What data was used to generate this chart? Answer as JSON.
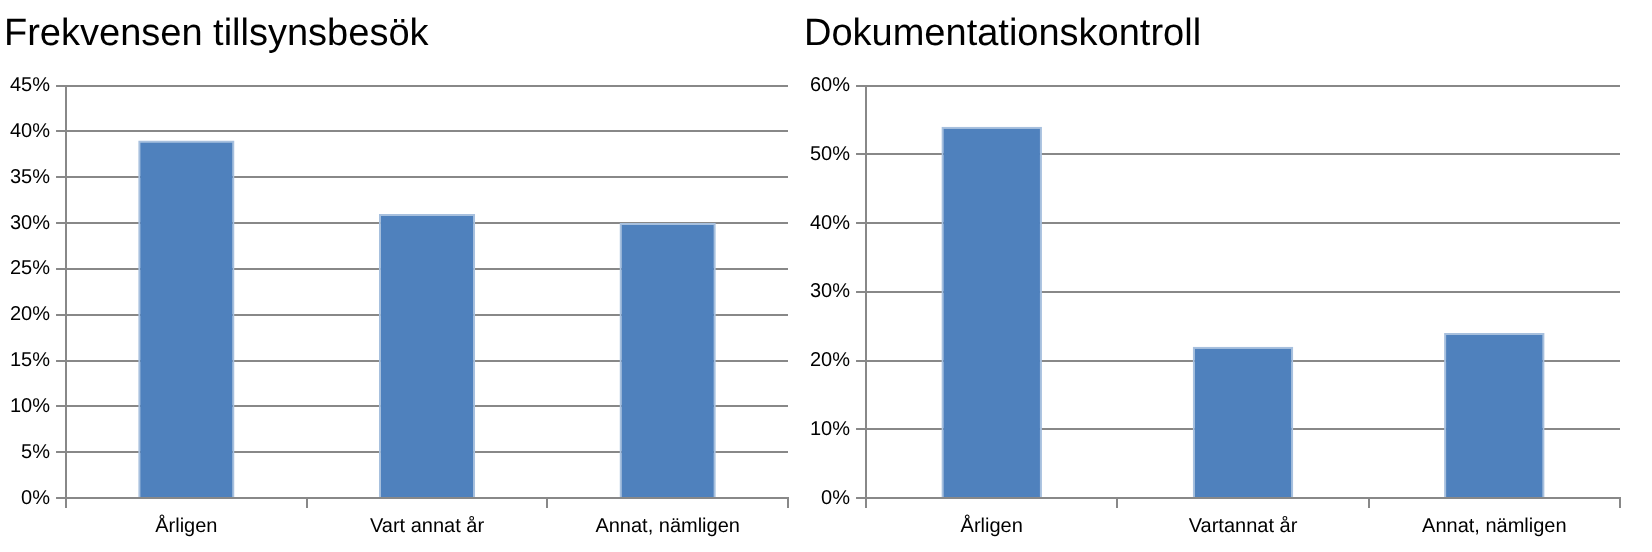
{
  "chart_data": [
    {
      "type": "bar",
      "title": "Frekvensen tillsynsbesök",
      "categories": [
        "Årligen",
        "Vart annat år",
        "Annat, nämligen"
      ],
      "values": [
        39,
        31,
        30
      ],
      "color": "#4f81bd",
      "ylim": [
        0,
        45
      ],
      "yticks": [
        {
          "value": 0,
          "label": "0%"
        },
        {
          "value": 5,
          "label": "5%"
        },
        {
          "value": 10,
          "label": "10%"
        },
        {
          "value": 15,
          "label": "15%"
        },
        {
          "value": 20,
          "label": "20%"
        },
        {
          "value": 25,
          "label": "25%"
        },
        {
          "value": 30,
          "label": "30%"
        },
        {
          "value": 35,
          "label": "35%"
        },
        {
          "value": 40,
          "label": "40%"
        },
        {
          "value": 45,
          "label": "45%"
        }
      ],
      "grid": "y",
      "legend": false
    },
    {
      "type": "bar",
      "title": "Dokumentationskontroll",
      "categories": [
        "Årligen",
        "Vartannat år",
        "Annat, nämligen"
      ],
      "values": [
        54,
        22,
        24
      ],
      "color": "#4f81bd",
      "ylim": [
        0,
        60
      ],
      "yticks": [
        {
          "value": 0,
          "label": "0%"
        },
        {
          "value": 10,
          "label": "10%"
        },
        {
          "value": 20,
          "label": "20%"
        },
        {
          "value": 30,
          "label": "30%"
        },
        {
          "value": 40,
          "label": "40%"
        },
        {
          "value": 50,
          "label": "50%"
        },
        {
          "value": 60,
          "label": "60%"
        }
      ],
      "grid": "y",
      "legend": false
    }
  ]
}
